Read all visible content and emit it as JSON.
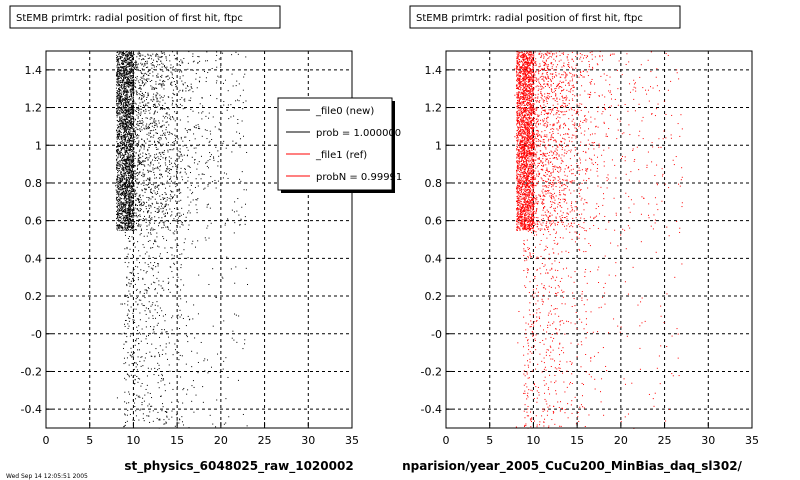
{
  "chart_data": [
    {
      "type": "scatter",
      "title": "StEMB primtrk: radial position of first hit, ftpc",
      "xlabel": "st_physics_6048025_raw_1020002",
      "ylabel": "",
      "xlim": [
        0,
        35
      ],
      "ylim": [
        -0.5,
        1.5
      ],
      "x_ticks": [
        "0",
        "5",
        "10",
        "15",
        "20",
        "25",
        "30",
        "35"
      ],
      "y_ticks": [
        "-0.4",
        "-0.2",
        "-0",
        "0.2",
        "0.4",
        "0.6",
        "0.8",
        "1",
        "1.2",
        "1.4"
      ],
      "grid": true,
      "legend_position": "top-right",
      "legend": [
        {
          "label": "_file0 (new)",
          "color": "#000000"
        },
        {
          "label": "prob = 1.000000",
          "color": "#000000"
        },
        {
          "label": "_file1 (ref)",
          "color": "#ff0000"
        },
        {
          "label": "probN = 0.99991",
          "color": "#ff0000"
        }
      ],
      "series": [
        {
          "color": "#000000",
          "x_range": [
            7.8,
            23
          ],
          "y_range": [
            -0.5,
            1.5
          ],
          "dense_band_x": [
            8,
            10
          ],
          "dense_band_y": [
            0.55,
            1.5
          ]
        }
      ]
    },
    {
      "type": "scatter",
      "title": "StEMB primtrk: radial position of first hit, ftpc",
      "xlabel": "nparision/year_2005_CuCu200_MinBias_daq_sl302/",
      "ylabel": "",
      "xlim": [
        0,
        35
      ],
      "ylim": [
        -0.5,
        1.5
      ],
      "x_ticks": [
        "0",
        "5",
        "10",
        "15",
        "20",
        "25",
        "30",
        "35"
      ],
      "y_ticks": [
        "-0.4",
        "-0.2",
        "-0",
        "0.2",
        "0.4",
        "0.6",
        "0.8",
        "1",
        "1.2",
        "1.4"
      ],
      "grid": true,
      "series": [
        {
          "color": "#ff0000",
          "x_range": [
            7.8,
            27
          ],
          "y_range": [
            -0.5,
            1.5
          ],
          "dense_band_x": [
            8,
            10
          ],
          "dense_band_y": [
            0.55,
            1.5
          ]
        }
      ]
    }
  ],
  "footer_text": "Wed Sep 14 12:05:51 2005"
}
